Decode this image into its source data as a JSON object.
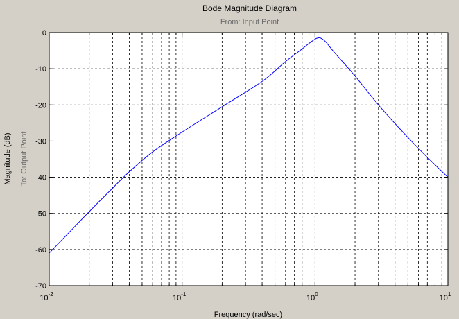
{
  "chart_data": {
    "type": "line",
    "title": "Bode Magnitude Diagram",
    "subtitle": "From: Input Point",
    "xlabel": "Frequency (rad/sec)",
    "ylabel": "Magnitude (dB)",
    "ylabel_secondary": "To: Output Point",
    "x_scale": "log",
    "xlim": [
      0.01,
      10
    ],
    "ylim": [
      -70,
      0
    ],
    "grid": true,
    "x_ticks": [
      {
        "value": 0.01,
        "base": "10",
        "exp": "-2"
      },
      {
        "value": 0.1,
        "base": "10",
        "exp": "-1"
      },
      {
        "value": 1,
        "base": "10",
        "exp": "0"
      },
      {
        "value": 10,
        "base": "10",
        "exp": "1"
      }
    ],
    "y_ticks": [
      {
        "value": 0,
        "label": "0"
      },
      {
        "value": -10,
        "label": "-10"
      },
      {
        "value": -20,
        "label": "-20"
      },
      {
        "value": -30,
        "label": "-30"
      },
      {
        "value": -40,
        "label": "-40"
      },
      {
        "value": -50,
        "label": "-50"
      },
      {
        "value": -60,
        "label": "-60"
      },
      {
        "value": -70,
        "label": "-70"
      }
    ],
    "series_color": "#0000ff",
    "series": [
      {
        "x": [
          0.01,
          0.02,
          0.03,
          0.04,
          0.06,
          0.1,
          0.2,
          0.4,
          0.6,
          0.8,
          0.9,
          1.0,
          1.05,
          1.1,
          1.2,
          1.4,
          2,
          3,
          5,
          7,
          10
        ],
        "y": [
          -61,
          -49.5,
          -43,
          -38.5,
          -33,
          -27.5,
          -20.5,
          -13.5,
          -8,
          -4.5,
          -3,
          -1.8,
          -1.5,
          -1.5,
          -2.5,
          -5.5,
          -12,
          -20,
          -29,
          -34.5,
          -40
        ]
      }
    ]
  }
}
